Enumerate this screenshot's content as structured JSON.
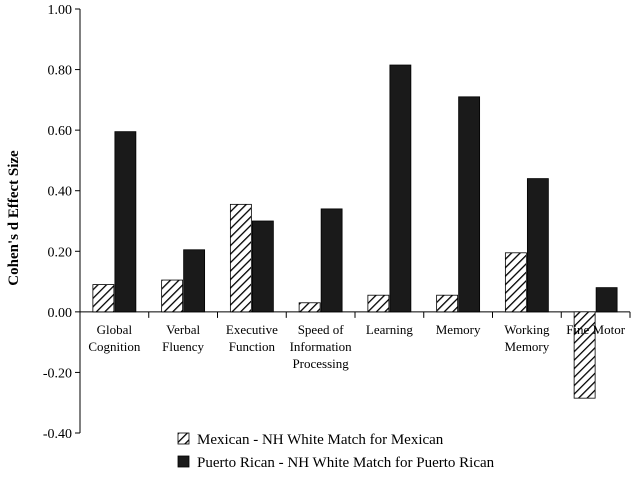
{
  "chart_data": {
    "type": "bar",
    "ylabel": "Cohen's d Effect Size",
    "xlabel": "",
    "ylim": [
      -0.4,
      1.0
    ],
    "yticks": [
      "1.00",
      "0.80",
      "0.60",
      "0.40",
      "0.20",
      "0.00",
      "-0.20",
      "-0.40"
    ],
    "ytick_values": [
      1.0,
      0.8,
      0.6,
      0.4,
      0.2,
      0.0,
      -0.2,
      -0.4
    ],
    "grid": false,
    "legend_position": "bottom",
    "categories": [
      [
        "Global",
        "Cognition"
      ],
      [
        "Verbal",
        "Fluency"
      ],
      [
        "Executive",
        "Function"
      ],
      [
        "Speed of",
        "Information",
        "Processing"
      ],
      [
        "Learning"
      ],
      [
        "Memory"
      ],
      [
        "Working",
        "Memory"
      ],
      [
        "Fine Motor"
      ]
    ],
    "series": [
      {
        "name": "Mexican - NH White Match for Mexican",
        "pattern": "hatched",
        "color": "#000000",
        "values": [
          0.09,
          0.105,
          0.355,
          0.03,
          0.055,
          0.055,
          0.195,
          -0.285
        ]
      },
      {
        "name": "Puerto Rican - NH White Match for Puerto Rican",
        "pattern": "solid",
        "color": "#1a1a1a",
        "values": [
          0.595,
          0.205,
          0.3,
          0.34,
          0.815,
          0.71,
          0.44,
          0.08
        ]
      }
    ]
  }
}
